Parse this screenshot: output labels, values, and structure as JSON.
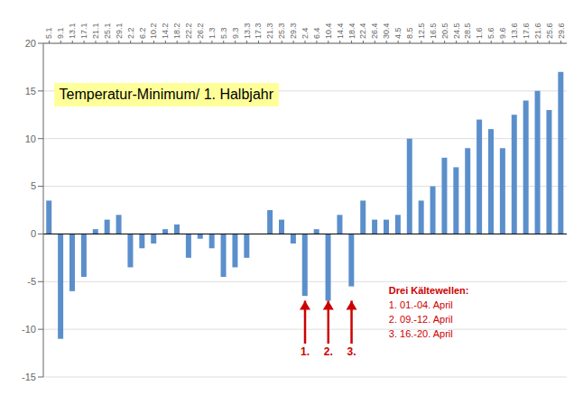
{
  "chart_data": {
    "type": "bar",
    "title": "Temperatur-Minimum/ 1. Halbjahr",
    "title_background": "#ffff99",
    "categories": [
      "5.1",
      "9.1",
      "13.1",
      "17.1",
      "21.1",
      "25.1",
      "29.1",
      "2.2",
      "6.2",
      "10.2",
      "14.2",
      "18.2",
      "22.2",
      "26.2",
      "1.3",
      "5.3",
      "9.3",
      "13.3",
      "17.3",
      "21.3",
      "25.3",
      "29.3",
      "2.4",
      "6.4",
      "10.4",
      "14.4",
      "18.4",
      "22.4",
      "26.4",
      "30.4",
      "4.5",
      "8.5",
      "12.5",
      "16.5",
      "20.5",
      "24.5",
      "28.5",
      "1.6",
      "5.6",
      "9.6",
      "13.6",
      "17.6",
      "21.6",
      "25.6",
      "29.6"
    ],
    "values": [
      3.5,
      -11.0,
      -6.0,
      -4.5,
      0.5,
      1.5,
      2.0,
      -3.5,
      -1.5,
      -1.0,
      0.5,
      1.0,
      -2.5,
      -0.5,
      -1.5,
      -4.5,
      -3.5,
      -2.5,
      0.0,
      2.5,
      1.5,
      -1.0,
      -6.5,
      0.5,
      -7.0,
      2.0,
      -5.5,
      3.5,
      1.5,
      1.5,
      2.0,
      10.0,
      3.5,
      5.0,
      8.0,
      7.0,
      9.0,
      12.0,
      11.0,
      9.0,
      12.5,
      14.0,
      15.0,
      13.0,
      17.0
    ],
    "color": "#5B8FCC",
    "ylim": [
      -15,
      20
    ],
    "yticks": [
      -15,
      -10,
      -5,
      0,
      5,
      10,
      15,
      20
    ],
    "grid": true,
    "zero_line": {
      "value": 0,
      "color": "black"
    },
    "annotations": [
      {
        "text": "1.",
        "category": "2.4",
        "y": -11.5,
        "y_to": -7.0,
        "color": "#CC0000"
      },
      {
        "text": "2.",
        "category": "10.4",
        "y": -11.5,
        "y_to": -7.0,
        "color": "#CC0000"
      },
      {
        "text": "3.",
        "category": "18.4",
        "y": -11.5,
        "y_to": -7.0,
        "color": "#CC0000"
      }
    ],
    "note_title": "Drei Kältewellen:",
    "note_items": [
      "1. 01.-04. April",
      "2. 09.-12. April",
      "3. 16.-20. April"
    ],
    "note_color": "#CC0000"
  }
}
